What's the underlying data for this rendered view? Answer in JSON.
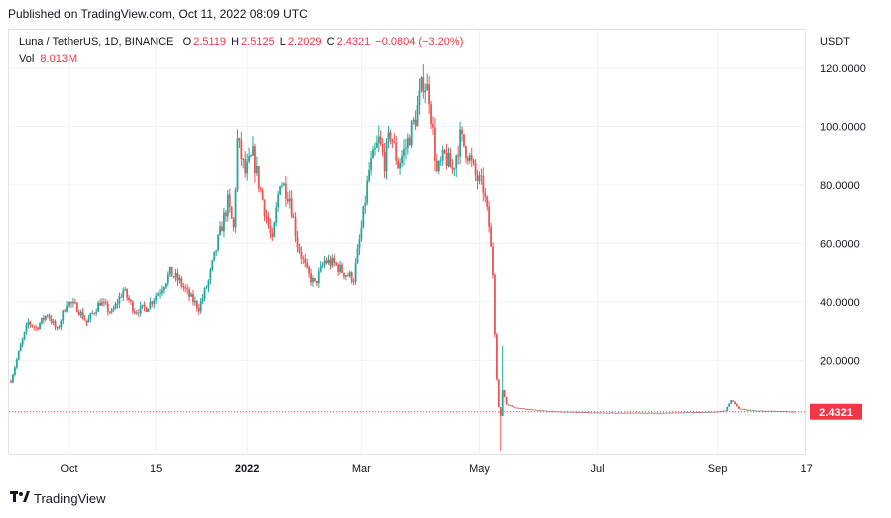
{
  "header": {
    "published": "Published on TradingView.com, Oct 11, 2022 08:09 UTC"
  },
  "legend": {
    "symbol": "Luna / TetherUS, 1D, BINANCE",
    "open_label": "O",
    "open": "2.5119",
    "high_label": "H",
    "high": "2.5125",
    "low_label": "L",
    "low": "2.2029",
    "close_label": "C",
    "close": "2.4321",
    "change": "−0.0804 (−3.20%)",
    "vol_label": "Vol",
    "vol": "8.013M"
  },
  "price_axis": {
    "currency": "USDT",
    "last_price_tag": "2.4321"
  },
  "footer": {
    "brand": "TradingView"
  },
  "colors": {
    "up": "#26a69a",
    "down": "#ef5350",
    "last_price": "#f23645",
    "grid": "#f0f3fa"
  },
  "chart_data": {
    "type": "candlestick",
    "x_start": "2021-09-01",
    "x_end": "2022-10-11",
    "y_axis": {
      "ticks": [
        "120.0000",
        "100.0000",
        "80.0000",
        "60.0000",
        "40.0000",
        "20.0000"
      ],
      "tick_values": [
        120,
        100,
        80,
        60,
        40,
        20
      ],
      "range": [
        -12,
        133
      ]
    },
    "x_ticks": [
      {
        "label": "Oct",
        "date": "2021-10-01",
        "bold": false
      },
      {
        "label": "15",
        "date": "2021-11-15",
        "bold": false
      },
      {
        "label": "2022",
        "date": "2022-01-01",
        "bold": true
      },
      {
        "label": "Mar",
        "date": "2022-03-01",
        "bold": false
      },
      {
        "label": "May",
        "date": "2022-05-01",
        "bold": false
      },
      {
        "label": "Jul",
        "date": "2022-07-01",
        "bold": false
      },
      {
        "label": "Sep",
        "date": "2022-09-01",
        "bold": false
      },
      {
        "label": "17",
        "date": "2022-10-17",
        "bold": false
      }
    ],
    "last_price": 2.4321,
    "close_path": [
      [
        "2021-09-01",
        13
      ],
      [
        "2021-09-06",
        25
      ],
      [
        "2021-09-10",
        33
      ],
      [
        "2021-09-14",
        31
      ],
      [
        "2021-09-20",
        36
      ],
      [
        "2021-09-25",
        30
      ],
      [
        "2021-09-30",
        40
      ],
      [
        "2021-10-05",
        38
      ],
      [
        "2021-10-10",
        33
      ],
      [
        "2021-10-17",
        40
      ],
      [
        "2021-10-23",
        36
      ],
      [
        "2021-10-29",
        44
      ],
      [
        "2021-11-04",
        37
      ],
      [
        "2021-11-10",
        38
      ],
      [
        "2021-11-17",
        44
      ],
      [
        "2021-11-22",
        50
      ],
      [
        "2021-11-27",
        47
      ],
      [
        "2021-12-02",
        42
      ],
      [
        "2021-12-07",
        38
      ],
      [
        "2021-12-12",
        47
      ],
      [
        "2021-12-17",
        61
      ],
      [
        "2021-12-22",
        74
      ],
      [
        "2021-12-25",
        65
      ],
      [
        "2021-12-27",
        95
      ],
      [
        "2021-12-31",
        84
      ],
      [
        "2022-01-04",
        90
      ],
      [
        "2022-01-09",
        75
      ],
      [
        "2022-01-14",
        60
      ],
      [
        "2022-01-18",
        82
      ],
      [
        "2022-01-23",
        76
      ],
      [
        "2022-01-27",
        60
      ],
      [
        "2022-02-01",
        50
      ],
      [
        "2022-02-05",
        46
      ],
      [
        "2022-02-10",
        54
      ],
      [
        "2022-02-15",
        53
      ],
      [
        "2022-02-20",
        50
      ],
      [
        "2022-02-25",
        48
      ],
      [
        "2022-03-01",
        65
      ],
      [
        "2022-03-05",
        85
      ],
      [
        "2022-03-10",
        95
      ],
      [
        "2022-03-13",
        88
      ],
      [
        "2022-03-16",
        98
      ],
      [
        "2022-03-20",
        87
      ],
      [
        "2022-03-24",
        93
      ],
      [
        "2022-03-29",
        103
      ],
      [
        "2022-04-02",
        116
      ],
      [
        "2022-04-05",
        111
      ],
      [
        "2022-04-09",
        84
      ],
      [
        "2022-04-13",
        90
      ],
      [
        "2022-04-17",
        85
      ],
      [
        "2022-04-21",
        96
      ],
      [
        "2022-04-25",
        91
      ],
      [
        "2022-04-29",
        83
      ],
      [
        "2022-05-03",
        79
      ],
      [
        "2022-05-06",
        66
      ],
      [
        "2022-05-08",
        50
      ],
      [
        "2022-05-09",
        30
      ],
      [
        "2022-05-10",
        14
      ],
      [
        "2022-05-11",
        4
      ],
      [
        "2022-05-12",
        1
      ],
      [
        "2022-05-13",
        10
      ],
      [
        "2022-05-15",
        5
      ],
      [
        "2022-05-19",
        4
      ],
      [
        "2022-05-25",
        3.4
      ],
      [
        "2022-06-05",
        2.6
      ],
      [
        "2022-07-01",
        2.1
      ],
      [
        "2022-08-01",
        2.0
      ],
      [
        "2022-08-30",
        2.4
      ],
      [
        "2022-09-05",
        2.8
      ],
      [
        "2022-09-08",
        6.5
      ],
      [
        "2022-09-12",
        3.5
      ],
      [
        "2022-09-20",
        2.8
      ],
      [
        "2022-10-01",
        2.6
      ],
      [
        "2022-10-11",
        2.43
      ]
    ]
  }
}
